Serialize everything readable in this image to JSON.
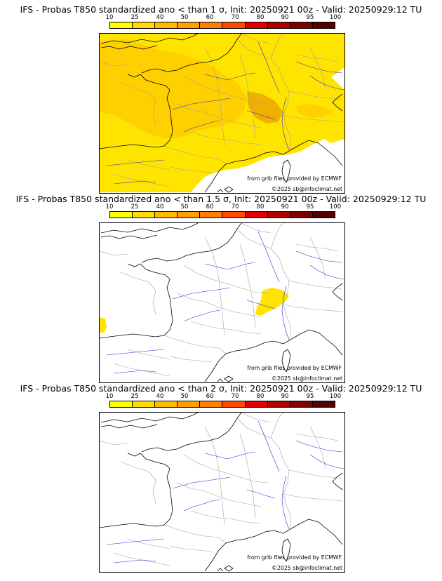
{
  "colors": {
    "bins": [
      "#ffff00",
      "#ffdd00",
      "#ffbb00",
      "#ffa000",
      "#ff7f00",
      "#ff4a00",
      "#e00000",
      "#b00000",
      "#800000",
      "#550000"
    ],
    "prob_fill": {
      "p10": "#ffe400",
      "p25": "#ffd000",
      "p40": "#f0b000"
    },
    "borders": "#a0a0a0",
    "rivers": "#2a2ad8",
    "coast": "#000000"
  },
  "legend_ticks": [
    "10",
    "25",
    "40",
    "50",
    "60",
    "70",
    "80",
    "90",
    "95",
    "100"
  ],
  "panels": [
    {
      "title": "IFS - Probas T850  standardized ano < than 1 σ, Init: 20250921 00z - Valid: 20250929:12 TU",
      "credit": "from grib files provided by ECMWF",
      "copyright": "©2025 sb@infoclimat.net",
      "coverage": "wide"
    },
    {
      "title": "IFS - Probas T850  standardized ano < than 1.5 σ, Init: 20250921 00z - Valid: 20250929:12 TU",
      "credit": "from grib files provided by ECMWF",
      "copyright": "©2025 sb@infoclimat.net",
      "coverage": "alps"
    },
    {
      "title": "IFS - Probas T850  standardized ano < than 2 σ, Init: 20250921 00z - Valid: 20250929:12 TU",
      "credit": "from grib files provided by ECMWF",
      "copyright": "©2025 sb@infoclimat.net",
      "coverage": "none"
    }
  ]
}
